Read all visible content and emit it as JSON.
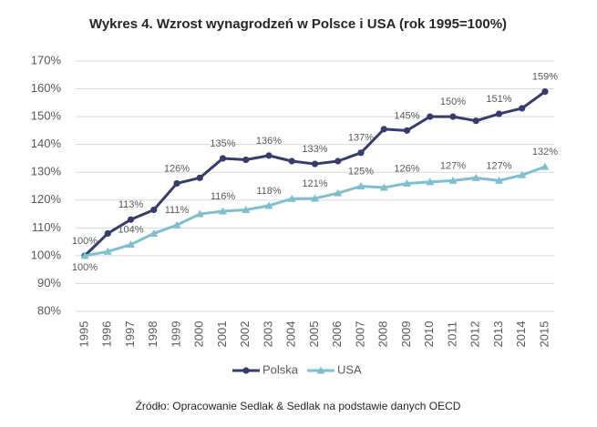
{
  "chart_data": {
    "type": "line",
    "title": "Wykres 4. Wzrost wynagrodzeń w Polsce i USA (rok 1995=100%)",
    "categories": [
      "1995",
      "1996",
      "1997",
      "1998",
      "1999",
      "2000",
      "2001",
      "2002",
      "2003",
      "2004",
      "2005",
      "2006",
      "2007",
      "2008",
      "2009",
      "2010",
      "2011",
      "2012",
      "2013",
      "2014",
      "2015"
    ],
    "series": [
      {
        "name": "Polska",
        "color": "#363c6e",
        "marker": "circle",
        "values": [
          100,
          108,
          113,
          116.5,
          126,
          128,
          135,
          134.5,
          136,
          134,
          133,
          134,
          137,
          145.5,
          145,
          150,
          150,
          148.5,
          151,
          153,
          159
        ],
        "value_labels": [
          "100%",
          null,
          "113%",
          null,
          "126%",
          null,
          "135%",
          null,
          "136%",
          null,
          "133%",
          null,
          "137%",
          null,
          "145%",
          null,
          "150%",
          null,
          "151%",
          null,
          "159%"
        ]
      },
      {
        "name": "USA",
        "color": "#7ebfd0",
        "marker": "triangle",
        "values": [
          100,
          101.5,
          104,
          108,
          111,
          115,
          116,
          116.5,
          118,
          120.5,
          120.6,
          122.5,
          125,
          124.5,
          126,
          126.5,
          127,
          128,
          127,
          129,
          132
        ],
        "value_labels": [
          "100%",
          null,
          "104%",
          null,
          "111%",
          null,
          "116%",
          null,
          "118%",
          null,
          "121%",
          null,
          "125%",
          null,
          "126%",
          null,
          "127%",
          null,
          "127%",
          null,
          "132%"
        ]
      }
    ],
    "ylim": [
      80,
      170
    ],
    "yticks": [
      {
        "value": 80,
        "label": "80%"
      },
      {
        "value": 90,
        "label": "90%"
      },
      {
        "value": 100,
        "label": "100%"
      },
      {
        "value": 110,
        "label": "110%"
      },
      {
        "value": 120,
        "label": "120%"
      },
      {
        "value": 130,
        "label": "130%"
      },
      {
        "value": 140,
        "label": "140%"
      },
      {
        "value": 150,
        "label": "150%"
      },
      {
        "value": 160,
        "label": "160%"
      },
      {
        "value": 170,
        "label": "170%"
      }
    ],
    "grid": true,
    "legend": "bottom",
    "source": "Źródło: Opracowanie Sedlak & Sedlak na podstawie danych OECD"
  }
}
